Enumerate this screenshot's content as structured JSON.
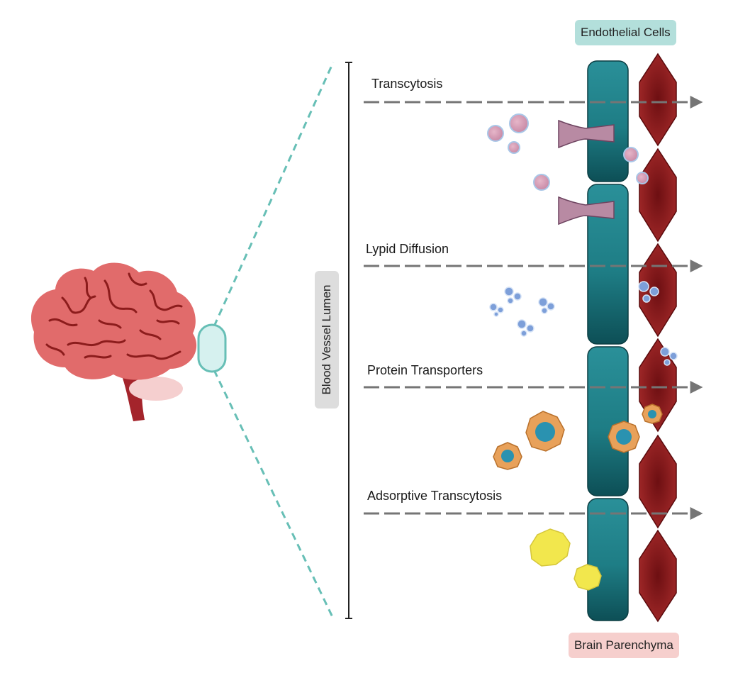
{
  "labels": {
    "endothelial_cells": "Endothelial Cells",
    "brain_parenchyma": "Brain Parenchyma",
    "blood_vessel_lumen": "Blood Vessel Lumen"
  },
  "routes": [
    {
      "label": "Transcytosis"
    },
    {
      "label": "Lypid Diffusion"
    },
    {
      "label": "Protein Transporters"
    },
    {
      "label": "Adsorptive Transcytosis"
    }
  ],
  "colors": {
    "brain": "#e16b6b",
    "brain_folds": "#8c1c1c",
    "brainstem": "#a4242b",
    "cerebellum": "#f5cfcf",
    "endothelial": "#1e7d85",
    "endothelial_dark": "#0d4f56",
    "parenchyma_cell": "#8b1a1a",
    "zoom_line": "#67bfb6",
    "arrow": "#757575",
    "vesicle": "#d9a2b9",
    "lipid_molecule": "#7d9fd9",
    "protein_cell": "#e8a15a",
    "protein_nucleus": "#2a92b0",
    "adsorptive_particle": "#f2e74d"
  }
}
